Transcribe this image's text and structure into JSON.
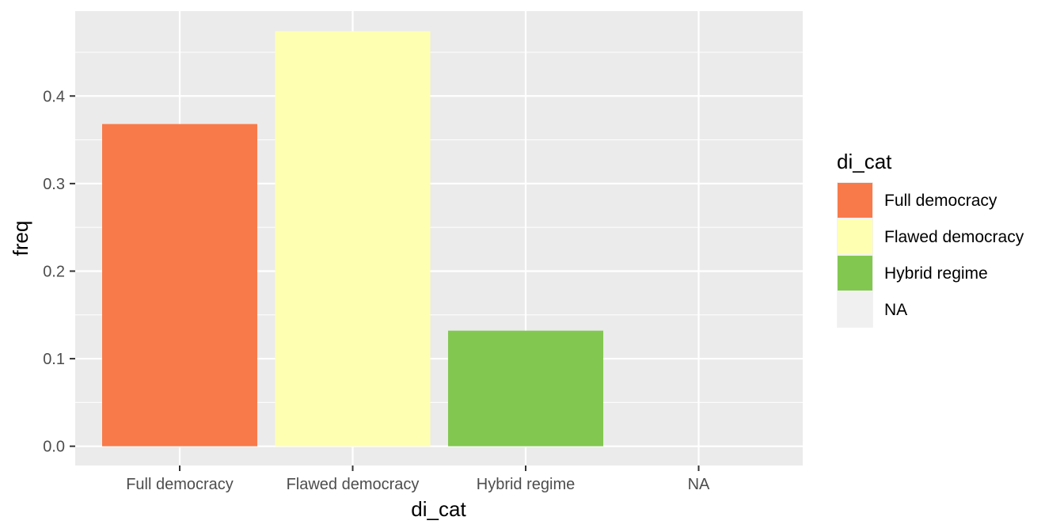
{
  "chart_data": {
    "type": "bar",
    "categories": [
      "Full democracy",
      "Flawed democracy",
      "Hybrid regime",
      "NA"
    ],
    "values": [
      0.368,
      0.474,
      0.132,
      0.0
    ],
    "colors": [
      "#F87A4A",
      "#FFFFB2",
      "#82C850",
      "#F0F0F0"
    ],
    "xlabel": "di_cat",
    "ylabel": "freq",
    "ylim": [
      -0.022,
      0.497
    ],
    "yticks": [
      0.0,
      0.1,
      0.2,
      0.3,
      0.4
    ],
    "ytick_labels": [
      "0.0",
      "0.1",
      "0.2",
      "0.3",
      "0.4"
    ],
    "grid": true,
    "panel_background": "#EBEBEB",
    "legend": {
      "title": "di_cat",
      "placement": "right",
      "entries": [
        "Full democracy",
        "Flawed democracy",
        "Hybrid regime",
        "NA"
      ]
    }
  }
}
